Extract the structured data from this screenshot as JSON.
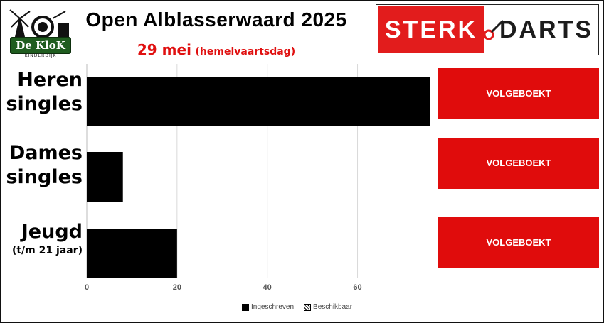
{
  "header": {
    "title": "Open Alblasserwaard 2025",
    "subtitle_date": "29 mei",
    "subtitle_note": "(hemelvaartsdag)"
  },
  "logo": {
    "badge_text": "De KloK",
    "sub_text": "KINDERDIJK",
    "icon": "windmill-icon"
  },
  "sponsor": {
    "left_text": "STERK",
    "right_text": "DARTS",
    "icon": "dart-icon",
    "accent": "#e21c1c"
  },
  "categories": [
    {
      "label_line1": "Heren",
      "label_line2": "singles",
      "sub": ""
    },
    {
      "label_line1": "Dames",
      "label_line2": "singles",
      "sub": ""
    },
    {
      "label_line1": "Jeugd",
      "label_line2": "",
      "sub": "(t/m 21 jaar)"
    }
  ],
  "status": [
    "VOLGEBOEKT",
    "VOLGEBOEKT",
    "VOLGEBOEKT"
  ],
  "status_color": "#e00c0c",
  "chart_data": {
    "type": "bar",
    "orientation": "horizontal",
    "categories": [
      "Heren singles",
      "Dames singles",
      "Jeugd (t/m 21 jaar)"
    ],
    "series": [
      {
        "name": "Ingeschreven",
        "values": [
          76,
          8,
          20
        ],
        "color": "#000000"
      },
      {
        "name": "Beschikbaar",
        "values": [
          0,
          0,
          0
        ],
        "color": "hatched"
      }
    ],
    "xlim": [
      0,
      76
    ],
    "xticks": [
      0,
      20,
      40,
      60
    ],
    "grid": true,
    "legend": "bottom"
  },
  "legend": {
    "ingeschreven": "Ingeschreven",
    "beschikbaar": "Beschikbaar"
  }
}
